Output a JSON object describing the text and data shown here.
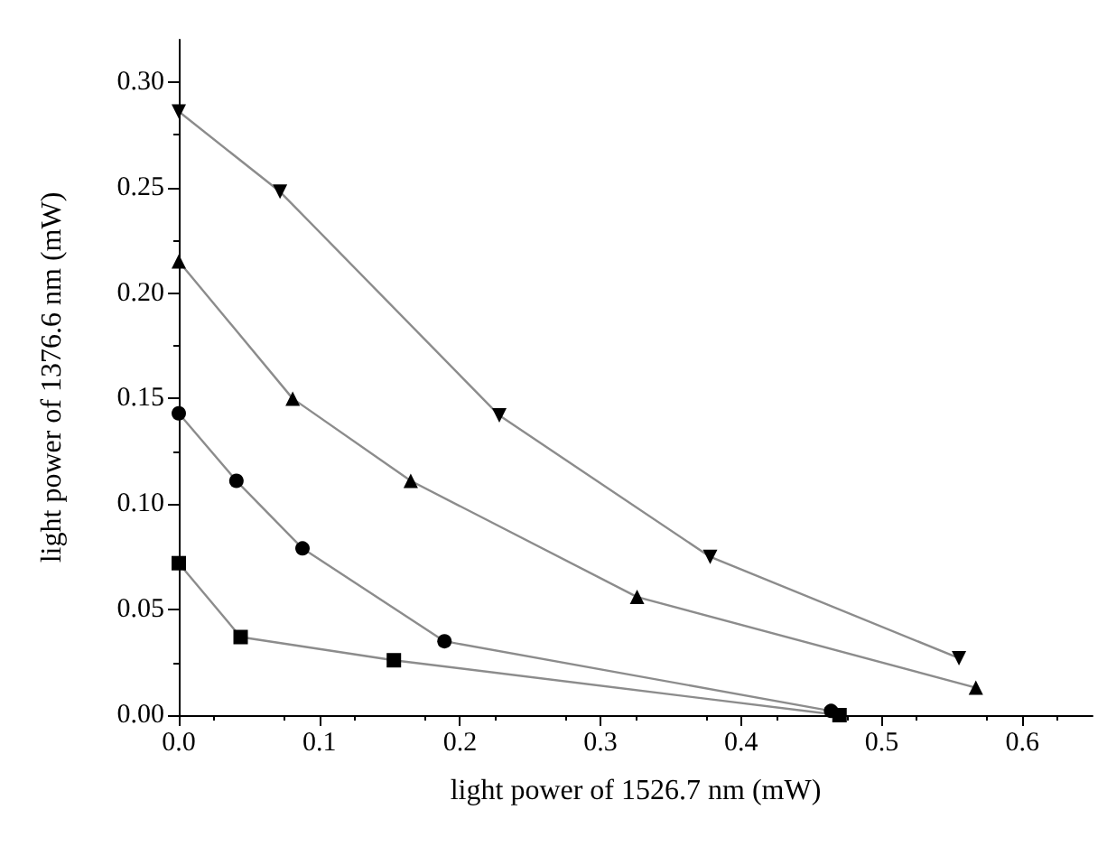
{
  "chart_data": {
    "type": "line",
    "xlabel": "light power of 1526.7 nm (mW)",
    "ylabel": "light power of 1376.6 nm (mW)",
    "xlim": [
      0,
      0.65
    ],
    "xticks": [
      {
        "value": 0,
        "label": "0.0"
      },
      0.1,
      0.2,
      0.3,
      0.4,
      0.5,
      0.6
    ],
    "ylim": [
      0,
      0.32
    ],
    "yticks": [
      {
        "value": 0,
        "label": "0.00"
      },
      0.05,
      {
        "value": 0.1,
        "label": "0.10"
      },
      0.15,
      {
        "value": 0.2,
        "label": "0.20"
      },
      0.25,
      {
        "value": 0.3,
        "label": "0.30"
      }
    ],
    "grid": false,
    "line_style": "solid",
    "series": [
      {
        "color": "#000000",
        "marker": "square",
        "x": [
          0,
          0.044,
          0.153,
          0.47
        ],
        "values": [
          0.072,
          0.037,
          0.026,
          0.0
        ]
      },
      {
        "color": "#000000",
        "marker": "circle",
        "x": [
          0,
          0.041,
          0.088,
          0.189,
          0.464
        ],
        "values": [
          0.143,
          0.111,
          0.079,
          0.035,
          0.002
        ]
      },
      {
        "color": "#000000",
        "marker": "triangle",
        "x": [
          0,
          0.081,
          0.165,
          0.326,
          0.567
        ],
        "values": [
          0.215,
          0.15,
          0.111,
          0.056,
          0.013
        ]
      },
      {
        "color": "#000000",
        "marker": "triangle-down",
        "x": [
          0,
          0.072,
          0.228,
          0.378,
          0.555
        ],
        "values": [
          0.286,
          0.248,
          0.142,
          0.075,
          0.027
        ]
      }
    ]
  }
}
